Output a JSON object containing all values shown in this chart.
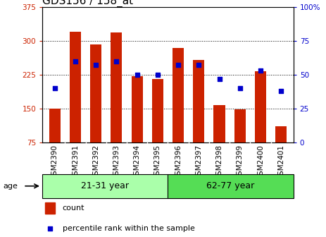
{
  "title": "GDS156 / 158_at",
  "samples": [
    "GSM2390",
    "GSM2391",
    "GSM2392",
    "GSM2393",
    "GSM2394",
    "GSM2395",
    "GSM2396",
    "GSM2397",
    "GSM2398",
    "GSM2399",
    "GSM2400",
    "GSM2401"
  ],
  "counts": [
    150,
    320,
    292,
    318,
    222,
    215,
    285,
    257,
    157,
    148,
    232,
    110
  ],
  "percentiles": [
    40,
    60,
    57,
    60,
    50,
    50,
    57,
    57,
    47,
    40,
    53,
    38
  ],
  "groups": [
    {
      "label": "21-31 year",
      "start": 0,
      "end": 6,
      "color": "#aaffaa"
    },
    {
      "label": "62-77 year",
      "start": 6,
      "end": 12,
      "color": "#55dd55"
    }
  ],
  "ylim": [
    75,
    375
  ],
  "yticks": [
    75,
    150,
    225,
    300,
    375
  ],
  "y2lim": [
    0,
    100
  ],
  "y2ticks": [
    0,
    25,
    50,
    75,
    100
  ],
  "bar_color": "#cc2200",
  "dot_color": "#0000cc",
  "bar_width": 0.55,
  "grid_color": "#000000",
  "background_color": "#ffffff",
  "age_label": "age",
  "legend_count_label": "count",
  "legend_pct_label": "percentile rank within the sample",
  "left_ytick_color": "#cc2200",
  "right_ytick_color": "#0000cc",
  "title_fontsize": 11,
  "tick_fontsize": 7.5,
  "label_fontsize": 8,
  "group_label_fontsize": 9,
  "xtick_bg_color": "#cccccc"
}
